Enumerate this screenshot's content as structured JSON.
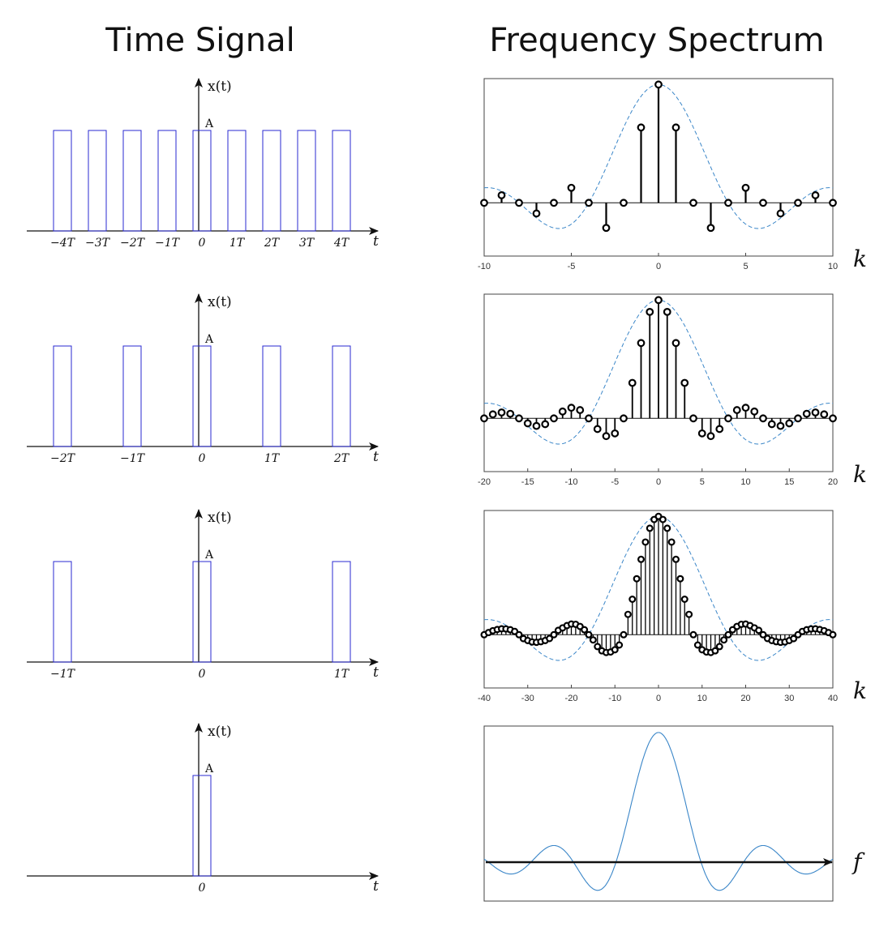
{
  "titles": {
    "left": "Time Signal",
    "right": "Frequency Spectrum"
  },
  "colors": {
    "pulse": "#2a2ad0",
    "stem": "#000000",
    "envelope": "#3a86c8",
    "marker_fill": "#ffffff"
  },
  "time_panels": [
    {
      "ylabel": "x(t)",
      "amp_label": "A",
      "xlabel": "t",
      "period": 1,
      "pulse_centers": [
        -4,
        -3,
        -2,
        -1,
        0,
        1,
        2,
        3,
        4
      ],
      "tick_labels": [
        "−4T",
        "−3T",
        "−2T",
        "−1T",
        "0",
        "1T",
        "2T",
        "3T",
        "4T"
      ]
    },
    {
      "ylabel": "x(t)",
      "amp_label": "A",
      "xlabel": "t",
      "period": 2,
      "pulse_centers": [
        -2,
        -1,
        0,
        1,
        2
      ],
      "tick_labels": [
        "−2T",
        "−1T",
        "0",
        "1T",
        "2T"
      ]
    },
    {
      "ylabel": "x(t)",
      "amp_label": "A",
      "xlabel": "t",
      "period": 4,
      "pulse_centers": [
        -1,
        0,
        1
      ],
      "tick_labels": [
        "−1T",
        "0",
        "1T"
      ]
    },
    {
      "ylabel": "x(t)",
      "amp_label": "A",
      "xlabel": "t",
      "period": null,
      "pulse_centers": [
        0
      ],
      "tick_labels": [
        "0"
      ]
    }
  ],
  "chart_data": [
    {
      "type": "stem",
      "duty": 0.25,
      "x_range": [
        -10,
        10
      ],
      "ylim": [
        -0.45,
        1.05
      ],
      "xticks": [
        -10,
        -5,
        0,
        5,
        10
      ],
      "xlabel": "k",
      "k": [
        -10,
        -9,
        -8,
        -7,
        -6,
        -5,
        -4,
        -3,
        -2,
        -1,
        0,
        1,
        2,
        3,
        4,
        5,
        6,
        7,
        8,
        9,
        10
      ],
      "values": [
        0,
        0.064,
        0,
        -0.09,
        0,
        0.127,
        0,
        -0.212,
        0,
        0.637,
        1,
        0.637,
        0,
        -0.212,
        0,
        0.127,
        0,
        -0.09,
        0,
        0.064,
        0
      ]
    },
    {
      "type": "stem",
      "duty": 0.125,
      "x_range": [
        -20,
        20
      ],
      "ylim": [
        -0.45,
        1.05
      ],
      "xticks": [
        -20,
        -15,
        -10,
        -5,
        0,
        5,
        10,
        15,
        20
      ],
      "xlabel": "k",
      "k": [
        -20,
        -19,
        -18,
        -17,
        -16,
        -15,
        -14,
        -13,
        -12,
        -11,
        -10,
        -9,
        -8,
        -7,
        -6,
        -5,
        -4,
        -3,
        -2,
        -1,
        0,
        1,
        2,
        3,
        4,
        5,
        6,
        7,
        8,
        9,
        10,
        11,
        12,
        13,
        14,
        15,
        16,
        17,
        18,
        19,
        20
      ],
      "values": [
        0,
        0.034,
        0.05,
        0.039,
        0,
        -0.042,
        -0.064,
        -0.049,
        0,
        0.058,
        0.09,
        0.07,
        0,
        -0.09,
        -0.15,
        -0.127,
        0,
        0.3,
        0.637,
        0.9,
        1,
        0.9,
        0.637,
        0.3,
        0,
        -0.127,
        -0.15,
        -0.09,
        0,
        0.07,
        0.09,
        0.058,
        0,
        -0.049,
        -0.064,
        -0.042,
        0,
        0.039,
        0.05,
        0.034,
        0
      ]
    },
    {
      "type": "stem",
      "duty": 0.0625,
      "x_range": [
        -40,
        40
      ],
      "ylim": [
        -0.45,
        1.05
      ],
      "xticks": [
        -40,
        -30,
        -20,
        -10,
        0,
        10,
        20,
        30,
        40
      ],
      "xlabel": "k",
      "k": [
        -40,
        -39,
        -38,
        -37,
        -36,
        -35,
        -34,
        -33,
        -32,
        -31,
        -30,
        -29,
        -28,
        -27,
        -26,
        -25,
        -24,
        -23,
        -22,
        -21,
        -20,
        -19,
        -18,
        -17,
        -16,
        -15,
        -14,
        -13,
        -12,
        -11,
        -10,
        -9,
        -8,
        -7,
        -6,
        -5,
        -4,
        -3,
        -2,
        -1,
        0,
        1,
        2,
        3,
        4,
        5,
        6,
        7,
        8,
        9,
        10,
        11,
        12,
        13,
        14,
        15,
        16,
        17,
        18,
        19,
        20,
        21,
        22,
        23,
        24,
        25,
        26,
        27,
        28,
        29,
        30,
        31,
        32,
        33,
        34,
        35,
        36,
        37,
        38,
        39,
        40
      ],
      "values": [
        0,
        0.018,
        0.034,
        0.044,
        0.05,
        0.049,
        0.042,
        0.028,
        0,
        -0.033,
        -0.049,
        -0.061,
        -0.064,
        -0.059,
        -0.049,
        -0.032,
        0,
        0.037,
        0.058,
        0.077,
        0.09,
        0.088,
        0.07,
        0.042,
        0,
        -0.044,
        -0.1,
        -0.136,
        -0.15,
        -0.146,
        -0.127,
        -0.087,
        0,
        0.172,
        0.3,
        0.473,
        0.637,
        0.783,
        0.9,
        0.974,
        1,
        0.974,
        0.9,
        0.783,
        0.637,
        0.473,
        0.3,
        0.172,
        0,
        -0.087,
        -0.127,
        -0.146,
        -0.15,
        -0.136,
        -0.1,
        -0.044,
        0,
        0.042,
        0.07,
        0.088,
        0.09,
        0.077,
        0.058,
        0.037,
        0,
        -0.032,
        -0.049,
        -0.059,
        -0.064,
        -0.061,
        -0.049,
        -0.033,
        0,
        0.028,
        0.042,
        0.049,
        0.05,
        0.044,
        0.034,
        0.018,
        0
      ]
    },
    {
      "type": "line",
      "x_range": [
        -4.1,
        4.1
      ],
      "ylim": [
        -0.3,
        1.05
      ],
      "xlabel": "f",
      "curve": "sinc",
      "note": "continuous spectrum"
    }
  ]
}
